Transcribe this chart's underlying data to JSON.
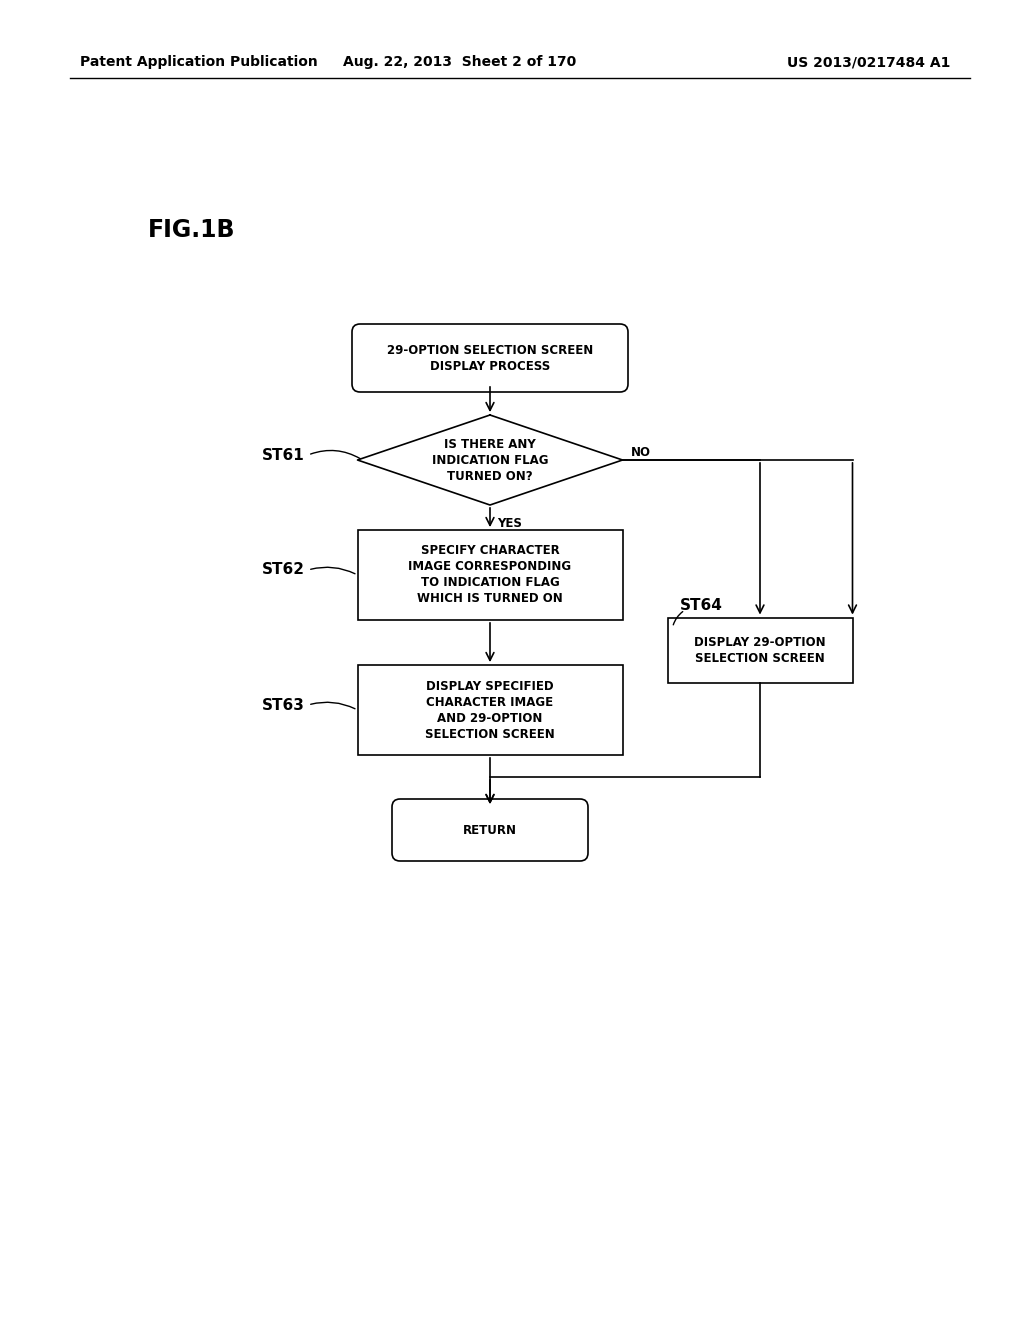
{
  "bg_color": "#ffffff",
  "header_left": "Patent Application Publication",
  "header_mid": "Aug. 22, 2013  Sheet 2 of 170",
  "header_right": "US 2013/0217484 A1",
  "fig_label": "FIG.1B",
  "text_fontsize": 8.5,
  "label_fontsize": 11,
  "header_fontsize": 10,
  "figlabel_fontsize": 17,
  "start_text": "29-OPTION SELECTION SCREEN\nDISPLAY PROCESS",
  "diamond_text": "IS THERE ANY\nINDICATION FLAG\nTURNED ON?",
  "st62_text": "SPECIFY CHARACTER\nIMAGE CORRESPONDING\nTO INDICATION FLAG\nWHICH IS TURNED ON",
  "st63_text": "DISPLAY SPECIFIED\nCHARACTER IMAGE\nAND 29-OPTION\nSELECTION SCREEN",
  "st64_text": "DISPLAY 29-OPTION\nSELECTION SCREEN",
  "return_text": "RETURN",
  "yes_label": "YES",
  "no_label": "NO",
  "st61_label": "ST61",
  "st62_label": "ST62",
  "st63_label": "ST63",
  "st64_label": "ST64"
}
